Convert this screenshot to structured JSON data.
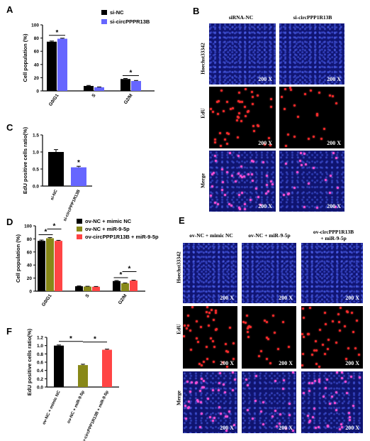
{
  "chart_data": [
    {
      "panel": "A",
      "type": "bar",
      "ylabel": "Cell population (%)",
      "ylim": [
        0,
        100
      ],
      "yticks": [
        "0",
        "20",
        "40",
        "60",
        "80",
        "100"
      ],
      "categories": [
        "G0/G1",
        "S",
        "G2/M"
      ],
      "series": [
        {
          "name": "si-NC",
          "color": "#000000",
          "values": [
            74.5,
            7.5,
            18.0
          ],
          "errors": [
            1.0,
            0.8,
            0.8
          ]
        },
        {
          "name": "si-circPPPR13B",
          "color": "#6666ff",
          "values": [
            79.0,
            5.5,
            15.0
          ],
          "errors": [
            0.8,
            0.5,
            0.8
          ]
        }
      ],
      "annotations": [
        {
          "between": "G0/G1",
          "text": "*"
        },
        {
          "between": "G2/M",
          "text": "*"
        }
      ]
    },
    {
      "panel": "C",
      "type": "bar",
      "ylabel": "EdU positive cells ratio(%)",
      "ylim": [
        0,
        1.5
      ],
      "yticks": [
        "0.0",
        "0.5",
        "1.0",
        "1.5"
      ],
      "categories": [
        "si-NC",
        "si-circPPP1R13B"
      ],
      "values": [
        1.0,
        0.55
      ],
      "errors": [
        0.07,
        0.03
      ],
      "colors": [
        "#000000",
        "#6666ff"
      ],
      "annotations": [
        {
          "on": "si-circPPP1R13B",
          "text": "*"
        }
      ]
    },
    {
      "panel": "D",
      "type": "bar",
      "ylabel": "Cell population (%)",
      "ylim": [
        0,
        100
      ],
      "yticks": [
        "0",
        "20",
        "40",
        "60",
        "80",
        "100"
      ],
      "categories": [
        "G0/G1",
        "S",
        "G2/M"
      ],
      "series": [
        {
          "name": "ov-NC + mimic NC",
          "color": "#000000",
          "values": [
            77.0,
            7.5,
            15.5
          ],
          "errors": [
            1.2,
            0.5,
            0.8
          ]
        },
        {
          "name": "ov-NC + miR-9-5p",
          "color": "#888818",
          "values": [
            81.0,
            7.0,
            12.0
          ],
          "errors": [
            1.0,
            0.5,
            0.6
          ]
        },
        {
          "name": "ov-circPPP1R13B + miR-9-5p",
          "color": "#ff4444",
          "values": [
            77.0,
            6.8,
            16.2
          ],
          "errors": [
            0.8,
            0.4,
            0.6
          ]
        }
      ],
      "annotations": [
        {
          "between": [
            "G0/G1:0",
            "G0/G1:1"
          ],
          "text": "*"
        },
        {
          "between": [
            "G0/G1:1",
            "G0/G1:2"
          ],
          "text": "*"
        },
        {
          "between": [
            "G2/M:0",
            "G2/M:1"
          ],
          "text": "*"
        },
        {
          "between": [
            "G2/M:1",
            "G2/M:2"
          ],
          "text": "*"
        }
      ]
    },
    {
      "panel": "F",
      "type": "bar",
      "ylabel": "EdU positive cells ratio(%)",
      "ylim": [
        0,
        1.2
      ],
      "yticks": [
        "0.0",
        "0.2",
        "0.4",
        "0.6",
        "0.8",
        "1.0",
        "1.2"
      ],
      "categories": [
        "ov-NC + mimic NC",
        "ov-NC + miR-9-5p",
        "ov-circPPP1R13B + miR-9-5p"
      ],
      "values": [
        1.0,
        0.53,
        0.9
      ],
      "errors": [
        0.015,
        0.02,
        0.015
      ],
      "colors": [
        "#000000",
        "#888818",
        "#ff4444"
      ],
      "annotations": [
        {
          "between": [
            0,
            1
          ],
          "text": "*"
        },
        {
          "between": [
            1,
            2
          ],
          "text": "*"
        }
      ]
    }
  ],
  "panel_letters": {
    "A": "A",
    "B": "B",
    "C": "C",
    "D": "D",
    "E": "E",
    "F": "F"
  },
  "panel_B": {
    "columns": [
      "siRNA-NC",
      "si-circPPP1R13B"
    ],
    "rows": [
      "Hoechst33342",
      "EdU",
      "Merge"
    ],
    "magnification": "200 X"
  },
  "panel_E": {
    "columns": [
      "ov-NC + mimic NC",
      "ov-NC + miR-9-5p",
      "ov-circPPP1R13B\n+ miR-9-5p"
    ],
    "rows": [
      "Hoechst33342",
      "EdU",
      "Merge"
    ],
    "magnification": "200 X"
  }
}
